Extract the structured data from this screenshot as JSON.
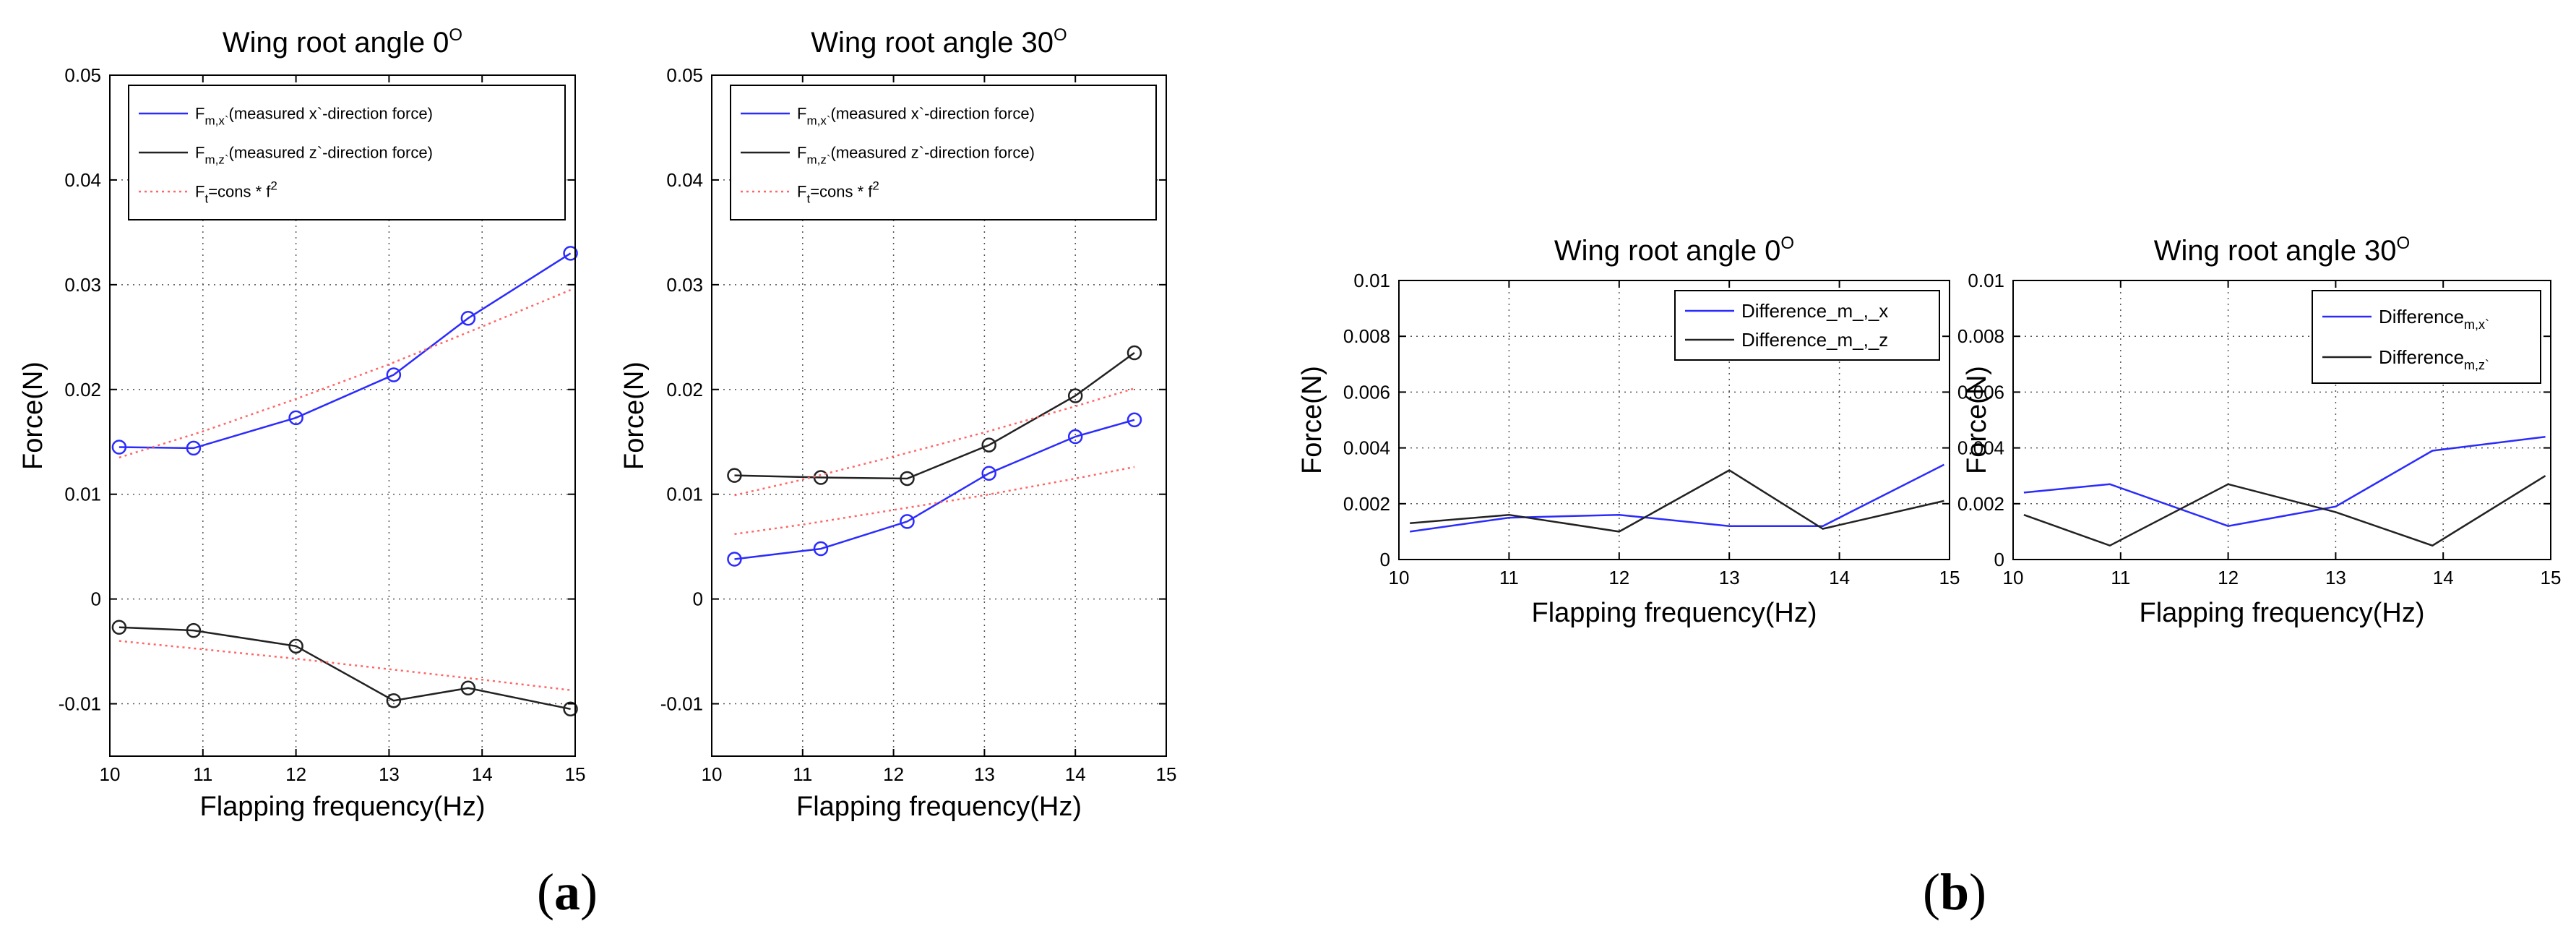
{
  "chart_data": [
    {
      "type": "line",
      "title": "Wing root angle 0",
      "title_sup": "O",
      "xlabel": "Flapping frequency(Hz)",
      "ylabel": "Force(N)",
      "xlim": [
        10,
        15
      ],
      "ylim": [
        -0.015,
        0.05
      ],
      "xticks": [
        10,
        11,
        12,
        13,
        14,
        15
      ],
      "xtick_labels": [
        "10",
        "11",
        "12",
        "13",
        "14",
        "15"
      ],
      "yticks": [
        -0.01,
        0,
        0.01,
        0.02,
        0.03,
        0.04,
        0.05
      ],
      "ytick_labels": [
        "-0.01",
        "0",
        "0.01",
        "0.02",
        "0.03",
        "0.04",
        "0.05"
      ],
      "grid": true,
      "legend_position": "top-right",
      "series": [
        {
          "name": "measured x`-direction force",
          "legend_main": "F",
          "legend_sub": "m,x`",
          "legend_rest": "(measured x`-direction force)",
          "color": "#2b2bff",
          "style": "solid",
          "markers": true,
          "x": [
            10.1,
            10.9,
            12.0,
            13.05,
            13.85,
            14.95
          ],
          "y": [
            0.0145,
            0.0144,
            0.0173,
            0.0214,
            0.0268,
            0.033
          ]
        },
        {
          "name": "measured z`-direction force",
          "legend_main": "F",
          "legend_sub": "m,z`",
          "legend_rest": "(measured z`-direction force)",
          "color": "#222222",
          "style": "solid",
          "markers": true,
          "x": [
            10.1,
            10.9,
            12.0,
            13.05,
            13.85,
            14.95
          ],
          "y": [
            -0.0027,
            -0.003,
            -0.0045,
            -0.0097,
            -0.0085,
            -0.0105
          ]
        },
        {
          "name": "Ft=cons*f^2 (x)",
          "legend_main": "F",
          "legend_sub": "t",
          "legend_rest": "=cons * f",
          "legend_sup": "2",
          "color": "#ff6666",
          "style": "dotted",
          "markers": false,
          "x": [
            10.1,
            11,
            12,
            13,
            14,
            14.95
          ],
          "y": [
            0.0135,
            0.016,
            0.0191,
            0.0224,
            0.026,
            0.0295
          ]
        },
        {
          "name": "Ft=cons*f^2 (z)",
          "legend_main": "",
          "color": "#ff6666",
          "style": "dotted",
          "markers": false,
          "x": [
            10.1,
            11,
            12,
            13,
            14,
            14.95
          ],
          "y": [
            -0.004,
            -0.0048,
            -0.0057,
            -0.0067,
            -0.0077,
            -0.0087
          ]
        }
      ]
    },
    {
      "type": "line",
      "title": "Wing root angle 30",
      "title_sup": "O",
      "xlabel": "Flapping frequency(Hz)",
      "ylabel": "Force(N)",
      "xlim": [
        10,
        15
      ],
      "ylim": [
        -0.015,
        0.05
      ],
      "xticks": [
        10,
        11,
        12,
        13,
        14,
        15
      ],
      "xtick_labels": [
        "10",
        "11",
        "12",
        "13",
        "14",
        "15"
      ],
      "yticks": [
        -0.01,
        0,
        0.01,
        0.02,
        0.03,
        0.04,
        0.05
      ],
      "ytick_labels": [
        "-0.01",
        "0",
        "0.01",
        "0.02",
        "0.03",
        "0.04",
        "0.05"
      ],
      "grid": true,
      "legend_position": "top-right",
      "series": [
        {
          "name": "measured x`-direction force",
          "legend_main": "F",
          "legend_sub": "m,x`",
          "legend_rest": "(measured x`-direction force)",
          "color": "#2b2bff",
          "style": "solid",
          "markers": true,
          "x": [
            10.25,
            11.2,
            12.15,
            13.05,
            14.0,
            14.65
          ],
          "y": [
            0.0038,
            0.0048,
            0.0074,
            0.012,
            0.0155,
            0.0171
          ]
        },
        {
          "name": "measured z`-direction force",
          "legend_main": "F",
          "legend_sub": "m,z`",
          "legend_rest": "(measured z`-direction force)",
          "color": "#222222",
          "style": "solid",
          "markers": true,
          "x": [
            10.25,
            11.2,
            12.15,
            13.05,
            14.0,
            14.65
          ],
          "y": [
            0.0118,
            0.0116,
            0.0115,
            0.0147,
            0.0194,
            0.0235
          ]
        },
        {
          "name": "Ft=cons*f^2 (upper)",
          "legend_main": "F",
          "legend_sub": "t",
          "legend_rest": "=cons * f",
          "legend_sup": "2",
          "color": "#ff6666",
          "style": "dotted",
          "markers": false,
          "x": [
            10.25,
            11,
            12,
            13,
            14,
            14.65
          ],
          "y": [
            0.0099,
            0.0114,
            0.0136,
            0.0159,
            0.0184,
            0.0201
          ]
        },
        {
          "name": "Ft=cons*f^2 (lower)",
          "legend_main": "",
          "color": "#ff6666",
          "style": "dotted",
          "markers": false,
          "x": [
            10.25,
            11,
            12,
            13,
            14,
            14.65
          ],
          "y": [
            0.0062,
            0.0071,
            0.0085,
            0.0099,
            0.0115,
            0.0126
          ]
        }
      ]
    },
    {
      "type": "line",
      "title": "Wing root angle 0",
      "title_sup": "O",
      "xlabel": "Flapping frequency(Hz)",
      "ylabel": "Force(N)",
      "xlim": [
        10,
        15
      ],
      "ylim": [
        0,
        0.01
      ],
      "xticks": [
        10,
        11,
        12,
        13,
        14,
        15
      ],
      "xtick_labels": [
        "10",
        "11",
        "12",
        "13",
        "14",
        "15"
      ],
      "yticks": [
        0,
        0.002,
        0.004,
        0.006,
        0.008,
        0.01
      ],
      "ytick_labels": [
        "0",
        "0.002",
        "0.004",
        "0.006",
        "0.008",
        "0.01"
      ],
      "grid": true,
      "legend_position": "top-right",
      "series": [
        {
          "name": "Difference_m_,_x",
          "legend_main": "Difference_m_,_x",
          "color": "#2b2bff",
          "style": "solid",
          "markers": false,
          "x": [
            10.1,
            11,
            12,
            13,
            13.85,
            14.95
          ],
          "y": [
            0.001,
            0.0015,
            0.0016,
            0.0012,
            0.0012,
            0.0034
          ]
        },
        {
          "name": "Difference_m_,_z",
          "legend_main": "Difference_m_,_z",
          "color": "#222222",
          "style": "solid",
          "markers": false,
          "x": [
            10.1,
            11,
            12,
            13,
            13.85,
            14.95
          ],
          "y": [
            0.0013,
            0.0016,
            0.001,
            0.0032,
            0.0011,
            0.0021
          ]
        }
      ]
    },
    {
      "type": "line",
      "title": "Wing root angle 30",
      "title_sup": "O",
      "xlabel": "Flapping frequency(Hz)",
      "ylabel": "Force(N)",
      "xlim": [
        10,
        15
      ],
      "ylim": [
        0,
        0.01
      ],
      "xticks": [
        10,
        11,
        12,
        13,
        14,
        15
      ],
      "xtick_labels": [
        "10",
        "11",
        "12",
        "13",
        "14",
        "15"
      ],
      "yticks": [
        0,
        0.002,
        0.004,
        0.006,
        0.008,
        0.01
      ],
      "ytick_labels": [
        "0",
        "0.002",
        "0.004",
        "0.006",
        "0.008",
        "0.01"
      ],
      "grid": true,
      "legend_position": "top-right",
      "series": [
        {
          "name": "Difference m,x`",
          "legend_main": "Difference",
          "legend_sub": "m,x`",
          "color": "#2b2bff",
          "style": "solid",
          "markers": false,
          "x": [
            10.1,
            10.9,
            12.0,
            13.0,
            13.9,
            14.95
          ],
          "y": [
            0.0024,
            0.0027,
            0.0012,
            0.0019,
            0.0039,
            0.0044
          ]
        },
        {
          "name": "Difference m,z`",
          "legend_main": "Difference",
          "legend_sub": "m,z`",
          "color": "#222222",
          "style": "solid",
          "markers": false,
          "x": [
            10.1,
            10.9,
            12.0,
            13.0,
            13.9,
            14.95
          ],
          "y": [
            0.0016,
            0.0005,
            0.0027,
            0.0017,
            0.0005,
            0.003
          ]
        }
      ]
    }
  ],
  "panel_labels": [
    {
      "open": "(",
      "letter": "a",
      "close": ")"
    },
    {
      "open": "(",
      "letter": "b",
      "close": ")"
    }
  ]
}
